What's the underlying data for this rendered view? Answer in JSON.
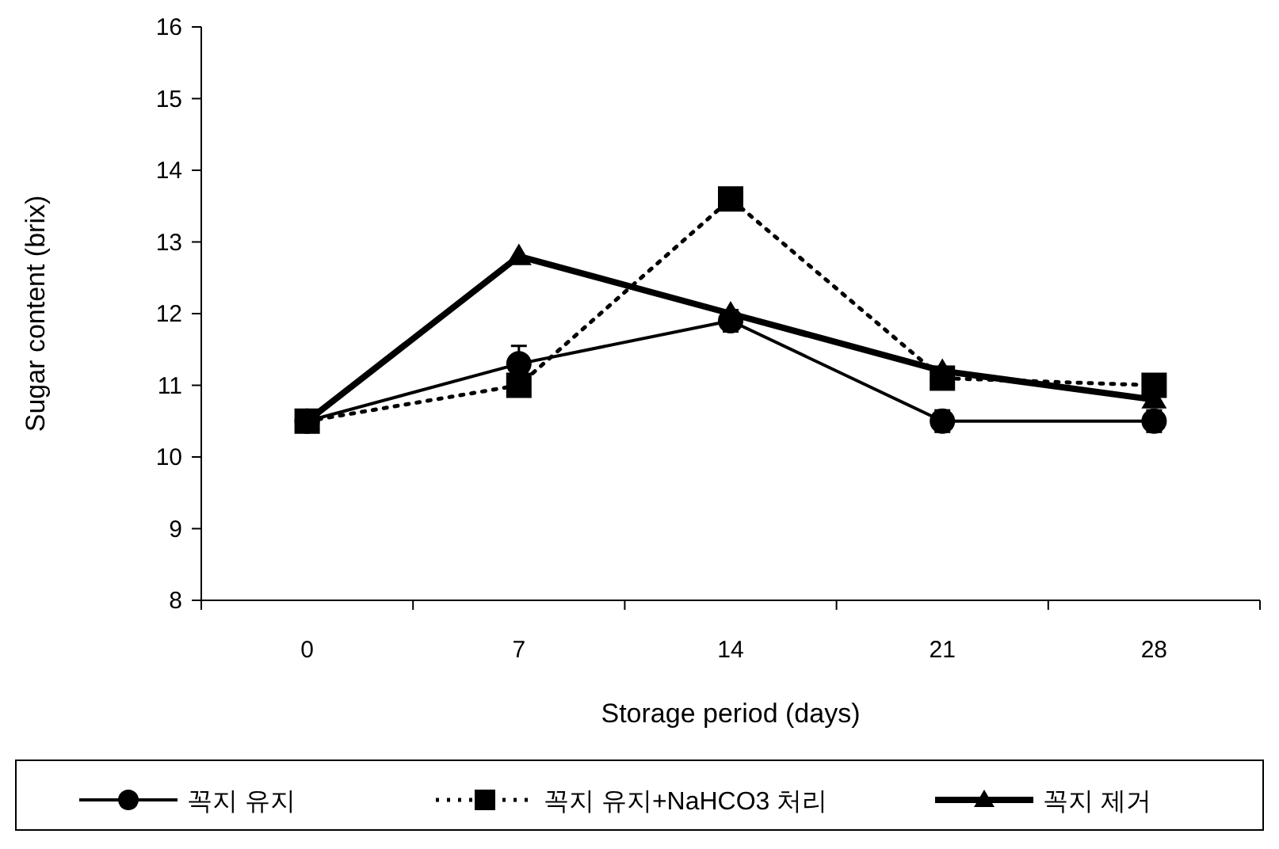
{
  "chart_data": {
    "type": "line",
    "xlabel": "Storage period (days)",
    "ylabel": "Sugar content (brix)",
    "categories": [
      "0",
      "7",
      "14",
      "21",
      "28"
    ],
    "ylim": [
      8,
      16
    ],
    "yticks": [
      8,
      9,
      10,
      11,
      12,
      13,
      14,
      15,
      16
    ],
    "grid": false,
    "legend": "bottom",
    "series": [
      {
        "name": "꼭지 유지",
        "color": "#000000",
        "marker": "circle",
        "line_style": "solid",
        "values": [
          10.5,
          11.3,
          11.9,
          10.5,
          10.5
        ],
        "errors": [
          0.1,
          0.25,
          0.15,
          0.15,
          0.15
        ]
      },
      {
        "name": "꼭지 유지+NaHCO3  처리",
        "color": "#000000",
        "marker": "square",
        "line_style": "dotted",
        "values": [
          10.5,
          11.0,
          13.6,
          11.1,
          11.0
        ]
      },
      {
        "name": "꼭지 제거",
        "color": "#000000",
        "marker": "triangle",
        "line_style": "solid",
        "values": [
          10.5,
          12.8,
          12.0,
          11.2,
          10.8
        ]
      }
    ]
  }
}
